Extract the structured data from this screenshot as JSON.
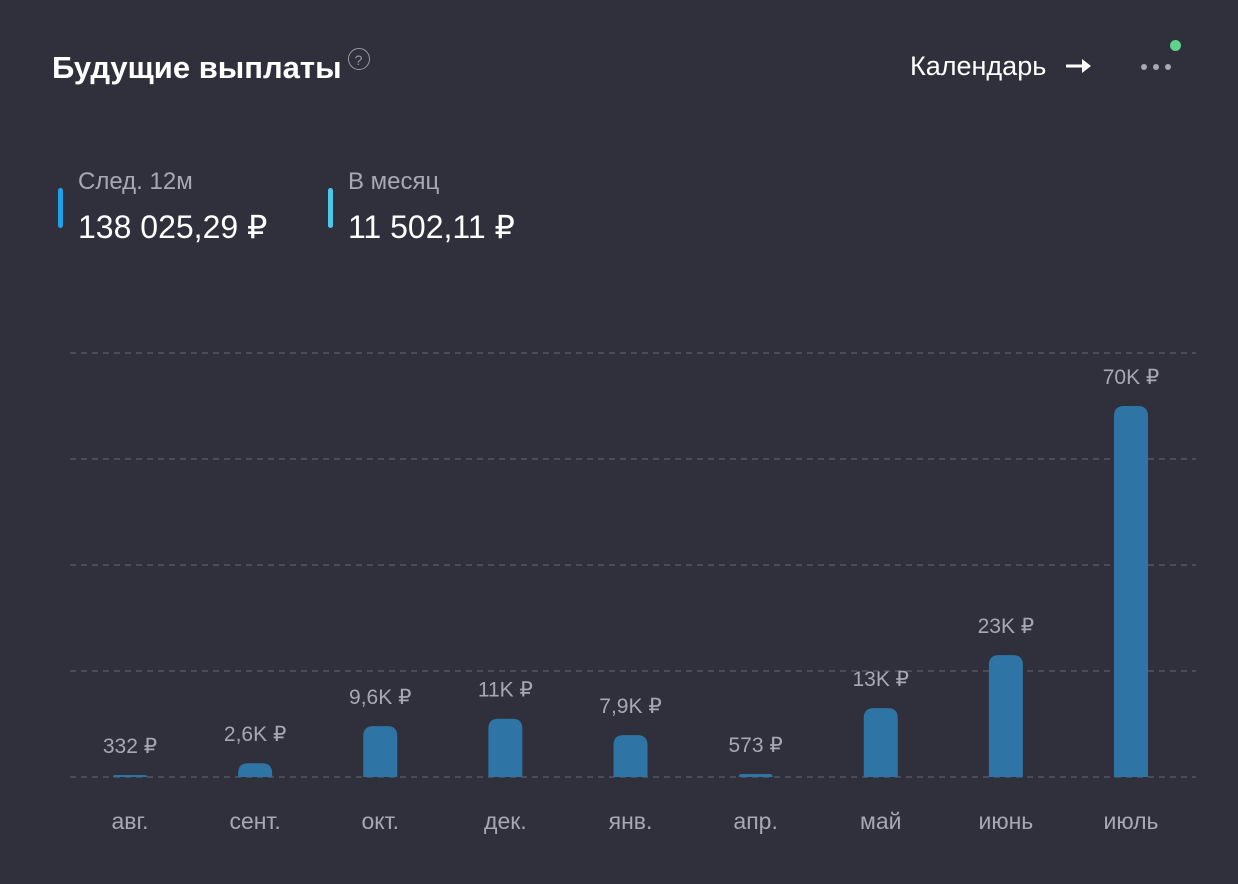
{
  "header": {
    "title": "Будущие выплаты",
    "help_symbol": "?",
    "calendar_label": "Календарь"
  },
  "stats": [
    {
      "label": "След. 12м",
      "value": "138 025,29 ₽",
      "color": "#1fa2e8"
    },
    {
      "label": "В месяц",
      "value": "11 502,11 ₽",
      "color": "#4ec6e8"
    }
  ],
  "colors": {
    "background": "#30303c",
    "bar": "#2e75a6",
    "grid": "#55555f",
    "notification": "#5fd38d"
  },
  "chart_data": {
    "type": "bar",
    "categories": [
      "авг.",
      "сент.",
      "окт.",
      "дек.",
      "янв.",
      "апр.",
      "май",
      "июнь",
      "июль"
    ],
    "values": [
      332,
      2600,
      9600,
      11000,
      7900,
      573,
      13000,
      23000,
      70000
    ],
    "data_labels": [
      "332 ₽",
      "2,6K ₽",
      "9,6K ₽",
      "11K ₽",
      "7,9K ₽",
      "573 ₽",
      "13K ₽",
      "23K ₽",
      "70K ₽"
    ],
    "ylim": [
      0,
      80000
    ],
    "grid": true,
    "legend": "none"
  }
}
